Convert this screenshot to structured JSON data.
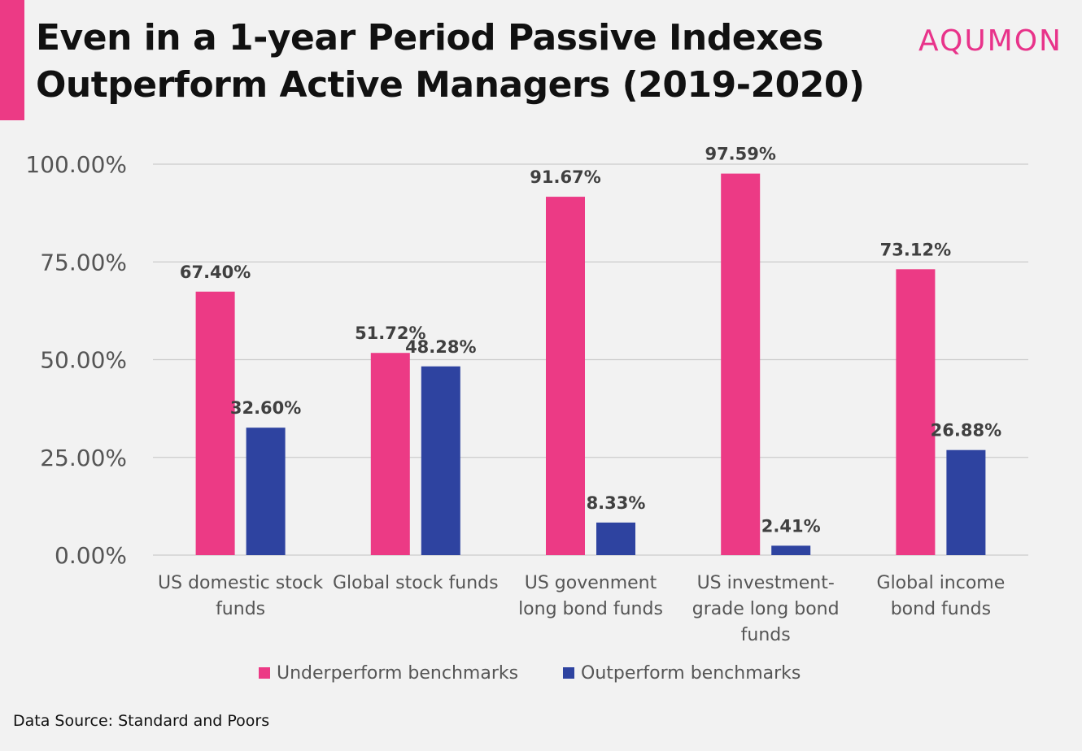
{
  "title_line1": "Even in a 1-year Period Passive Indexes",
  "title_line2": "Outperform Active Managers (2019-2020)",
  "logo": "AQUMON",
  "source": "Data Source: Standard and Poors",
  "colors": {
    "accent": "#ec3a85",
    "underperform": "#ec3a85",
    "outperform": "#2e43a0",
    "grid": "#cccccc",
    "background": "#f2f2f2"
  },
  "chart_data": {
    "type": "bar",
    "categories": [
      [
        "US domestic stock",
        "funds"
      ],
      [
        "Global stock funds"
      ],
      [
        "US govenment",
        "long bond funds"
      ],
      [
        "US investment-",
        "grade long bond",
        "funds"
      ],
      [
        "Global income",
        "bond funds"
      ]
    ],
    "series": [
      {
        "name": "Underperform benchmarks",
        "values": [
          67.4,
          51.72,
          91.67,
          97.59,
          73.12
        ],
        "labels": [
          "67.40%",
          "51.72%",
          "91.67%",
          "97.59%",
          "73.12%"
        ]
      },
      {
        "name": "Outperform benchmarks",
        "values": [
          32.6,
          48.28,
          8.33,
          2.41,
          26.88
        ],
        "labels": [
          "32.60%",
          "48.28%",
          "8.33%",
          "2.41%",
          "26.88%"
        ]
      }
    ],
    "ylim": [
      0,
      100
    ],
    "yticks": [
      0,
      25,
      50,
      75,
      100
    ],
    "ytick_labels": [
      "0.00%",
      "25.00%",
      "50.00%",
      "75.00%",
      "100.00%"
    ],
    "grid": true,
    "legend_position": "bottom-center"
  }
}
